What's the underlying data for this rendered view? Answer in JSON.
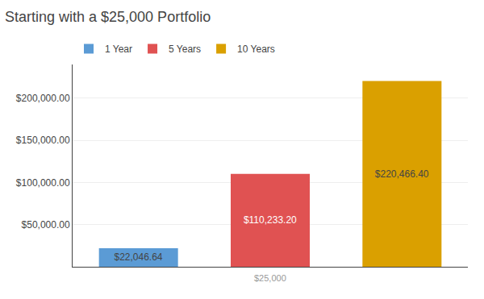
{
  "chart_data": {
    "type": "bar",
    "title": "Starting with a $25,000 Portfolio",
    "categories": [
      "1 Year",
      "5 Years",
      "10 Years"
    ],
    "values": [
      22046.64,
      110233.2,
      220466.4
    ],
    "value_labels": [
      "$22,046.64",
      "$110,233.20",
      "$220,466.40"
    ],
    "data_labels": true,
    "colors": [
      "#5B9BD5",
      "#E05252",
      "#DAA000"
    ],
    "annotations": [
      {
        "text": "$25,000",
        "x": "5 Years",
        "color": "#999999"
      }
    ],
    "ylim": [
      0,
      240000
    ],
    "yticks": [
      {
        "value": 50000,
        "label": "$50,000.00"
      },
      {
        "value": 100000,
        "label": "$100,000.00"
      },
      {
        "value": 150000,
        "label": "$150,000.00"
      },
      {
        "value": 200000,
        "label": "$200,000.00"
      }
    ],
    "grid": true,
    "legend": "upper left",
    "tick_labels": "y"
  }
}
